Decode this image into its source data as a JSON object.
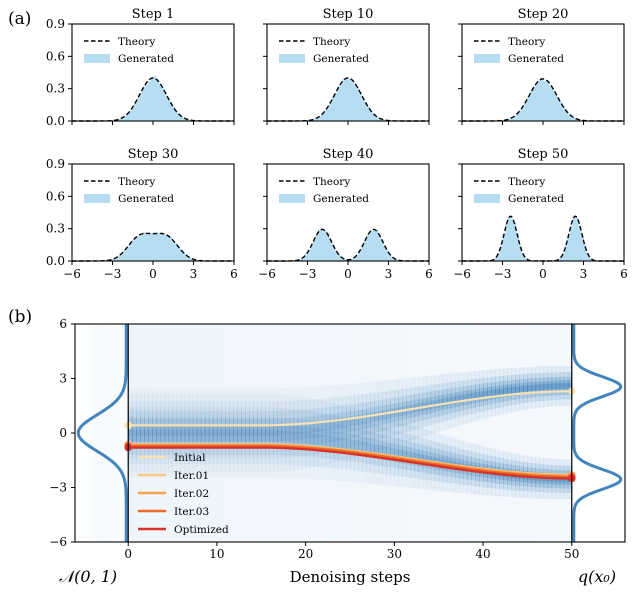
{
  "panel_labels": {
    "a": "(a)",
    "b": "(b)"
  },
  "chart_data": [
    {
      "type": "area",
      "title": "Step 1",
      "xlim": [
        -6,
        6
      ],
      "ylim": [
        0,
        0.9
      ],
      "x_ticks": [
        "−6",
        "−3",
        "0",
        "3",
        "6"
      ],
      "y_ticks": [
        "0.0",
        "0.3",
        "0.6",
        "0.9"
      ],
      "x_ticks_visible": false,
      "y_ticks_visible": true,
      "legend": [
        "Theory",
        "Generated"
      ],
      "mixture": {
        "mu": 0.0,
        "sigma": 1.0
      }
    },
    {
      "type": "area",
      "title": "Step 10",
      "xlim": [
        -6,
        6
      ],
      "ylim": [
        0,
        0.9
      ],
      "x_ticks": [
        "−6",
        "−3",
        "0",
        "3",
        "6"
      ],
      "y_ticks": [
        "0.0",
        "0.3",
        "0.6",
        "0.9"
      ],
      "x_ticks_visible": false,
      "y_ticks_visible": false,
      "legend": [
        "Theory",
        "Generated"
      ],
      "mixture": {
        "mu": 0.0,
        "sigma": 1.0
      }
    },
    {
      "type": "area",
      "title": "Step 20",
      "xlim": [
        -6,
        6
      ],
      "ylim": [
        0,
        0.9
      ],
      "x_ticks": [
        "−6",
        "−3",
        "0",
        "3",
        "6"
      ],
      "y_ticks": [
        "0.0",
        "0.3",
        "0.6",
        "0.9"
      ],
      "x_ticks_visible": false,
      "y_ticks_visible": false,
      "legend": [
        "Theory",
        "Generated"
      ],
      "mixture": {
        "mu": 0.2,
        "sigma": 1.0
      }
    },
    {
      "type": "area",
      "title": "Step 30",
      "xlim": [
        -6,
        6
      ],
      "ylim": [
        0,
        0.9
      ],
      "x_ticks": [
        "−6",
        "−3",
        "0",
        "3",
        "6"
      ],
      "y_ticks": [
        "0.0",
        "0.3",
        "0.6",
        "0.9"
      ],
      "x_ticks_visible": true,
      "y_ticks_visible": true,
      "legend": [
        "Theory",
        "Generated"
      ],
      "mixture": {
        "mu": 0.95,
        "sigma": 0.9
      }
    },
    {
      "type": "area",
      "title": "Step 40",
      "xlim": [
        -6,
        6
      ],
      "ylim": [
        0,
        0.9
      ],
      "x_ticks": [
        "−6",
        "−3",
        "0",
        "3",
        "6"
      ],
      "y_ticks": [
        "0.0",
        "0.3",
        "0.6",
        "0.9"
      ],
      "x_ticks_visible": true,
      "y_ticks_visible": false,
      "legend": [
        "Theory",
        "Generated"
      ],
      "mixture": {
        "mu": 1.9,
        "sigma": 0.68
      }
    },
    {
      "type": "area",
      "title": "Step 50",
      "xlim": [
        -6,
        6
      ],
      "ylim": [
        0,
        0.9
      ],
      "x_ticks": [
        "−6",
        "−3",
        "0",
        "3",
        "6"
      ],
      "y_ticks": [
        "0.0",
        "0.3",
        "0.6",
        "0.9"
      ],
      "x_ticks_visible": true,
      "y_ticks_visible": false,
      "legend": [
        "Theory",
        "Generated"
      ],
      "mixture": {
        "mu": 2.4,
        "sigma": 0.48
      }
    },
    {
      "type": "line",
      "title": "",
      "xlabel": "Denoising steps",
      "left_label": "𝒩(0, 1)",
      "right_label": "q(x₀)",
      "xlim": [
        -6,
        56
      ],
      "ylim": [
        -6,
        6
      ],
      "x_ticks": [
        "0",
        "10",
        "20",
        "30",
        "40",
        "50"
      ],
      "y_ticks": [
        "−6",
        "−3",
        "0",
        "3",
        "6"
      ],
      "legend": [
        "Initial",
        "Iter.01",
        "Iter.02",
        "Iter.03",
        "Optimized"
      ],
      "series_colors": [
        "#f6e2b4",
        "#fcc77e",
        "#f9a24e",
        "#ee6b2a",
        "#d8322a"
      ],
      "heat_color": "#2f78b5",
      "marginal_color": "#2f78b5",
      "series": [
        {
          "name": "Initial",
          "start": 0.42,
          "end": 2.3,
          "width": 2.2
        },
        {
          "name": "Iter.01",
          "start": -0.62,
          "end": -2.3,
          "width": 2.2
        },
        {
          "name": "Iter.02",
          "start": -0.66,
          "end": -2.35,
          "width": 2.2
        },
        {
          "name": "Iter.03",
          "start": -0.72,
          "end": -2.42,
          "width": 2.6
        },
        {
          "name": "Optimized",
          "start": -0.8,
          "end": -2.5,
          "width": 2.4
        }
      ]
    }
  ],
  "colors": {
    "hist_fill": "#b6ddf2",
    "theory_line": "#000000"
  }
}
